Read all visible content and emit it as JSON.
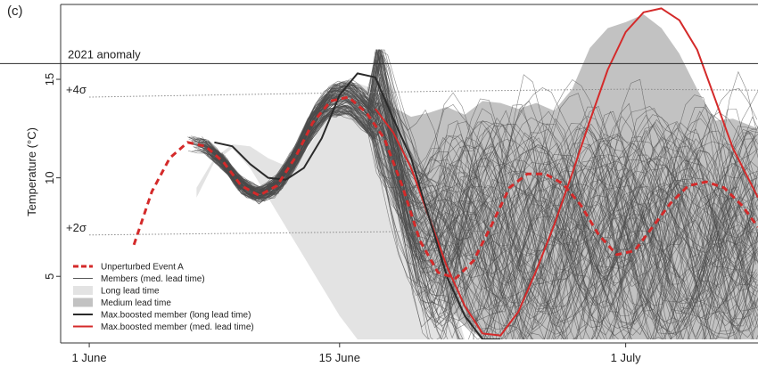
{
  "panel_label": "(c)",
  "chart_data": {
    "type": "line",
    "title": "",
    "xlabel": "",
    "ylabel": "Temperature (°C)",
    "x_tick_labels": [
      "1 June",
      "15 June",
      "1 July"
    ],
    "x_tick_days": [
      0,
      14,
      30
    ],
    "y_ticks": [
      5,
      10,
      15
    ],
    "xlim_days": [
      -1.6,
      37.4
    ],
    "ylim": [
      1.8,
      18.8
    ],
    "grid": false,
    "legend_position": "bottom-left",
    "reference_lines": [
      {
        "label": "2021 anomaly",
        "y": 15.8,
        "style": "solid"
      },
      {
        "label": "+4σ",
        "style": "dotted",
        "days": [
          0,
          10,
          20,
          30,
          37.4
        ],
        "y": [
          14.1,
          14.25,
          14.4,
          14.5,
          14.45
        ]
      },
      {
        "label": "+2σ",
        "style": "dotted",
        "days": [
          0,
          10,
          20,
          30,
          37.4
        ],
        "y": [
          7.1,
          7.2,
          7.3,
          7.35,
          7.35
        ]
      }
    ],
    "bands": [
      {
        "name": "Long lead time",
        "color": "#e3e3e3",
        "days": [
          6,
          7,
          8,
          9,
          10,
          11,
          12,
          13,
          14,
          15,
          16,
          17,
          18,
          19,
          20,
          21
        ],
        "upper": [
          9.5,
          11,
          11.7,
          11.6,
          11.0,
          10.6,
          11.2,
          12.6,
          14.1,
          14.8,
          14.5,
          13.8,
          11.5,
          8.5,
          5.0,
          1.8
        ],
        "lower": [
          9.0,
          10.8,
          11.5,
          10.5,
          9.0,
          7.5,
          6.0,
          4.5,
          3.0,
          1.8,
          1.8,
          1.8,
          1.8,
          1.8,
          1.8,
          1.8
        ]
      },
      {
        "name": "Medium lead time",
        "color": "#c2c2c2",
        "days": [
          16,
          17,
          18,
          19,
          20,
          21,
          22,
          23,
          24,
          25,
          26,
          27,
          28,
          29,
          30,
          31,
          32,
          33,
          34,
          35,
          36,
          37.4
        ],
        "upper": [
          13.8,
          13.6,
          13.1,
          13.3,
          13.6,
          13.2,
          13.9,
          13.8,
          13.5,
          13.8,
          13.4,
          14.5,
          16.6,
          17.6,
          17.9,
          18.3,
          17.6,
          16.3,
          14.5,
          12.9,
          13.0,
          12.5
        ],
        "lower": [
          11.0,
          9.0,
          7.0,
          5.0,
          3.5,
          2.5,
          1.8,
          1.8,
          1.8,
          1.8,
          1.8,
          1.8,
          1.8,
          1.8,
          1.8,
          1.8,
          1.8,
          1.8,
          1.8,
          1.8,
          1.8,
          1.8
        ]
      }
    ],
    "series": [
      {
        "name": "Unperturbed Event A",
        "color": "#d42a2a",
        "style": "dashed",
        "days": [
          2.5,
          3.5,
          4.5,
          5.5,
          6.5,
          7.5,
          8.5,
          9.5,
          10.5,
          11.5,
          12.5,
          13.5,
          14.5,
          15.5,
          16.5,
          17.5,
          18.5,
          19.5,
          20.5,
          21.5,
          22.5,
          23.5,
          24.5,
          25.5,
          26.5,
          27.5,
          28.5,
          29.5,
          30.5,
          31.5,
          32.5,
          33.5,
          34.5,
          35.5,
          36.5,
          37.4
        ],
        "values": [
          6.6,
          9.3,
          11.0,
          11.8,
          11.6,
          10.8,
          9.6,
          9.1,
          9.6,
          11.0,
          12.8,
          13.9,
          14.1,
          13.3,
          12.0,
          9.6,
          6.8,
          5.2,
          4.9,
          5.8,
          7.6,
          9.5,
          10.2,
          10.2,
          9.7,
          8.6,
          7.1,
          6.1,
          6.3,
          7.5,
          8.7,
          9.6,
          9.8,
          9.5,
          8.6,
          7.5
        ]
      },
      {
        "name": "Members (med. lead time)",
        "color": "#555555",
        "style": "solid",
        "count": 120
      },
      {
        "name": "Long lead time",
        "color": "#e3e3e3",
        "style": "band"
      },
      {
        "name": "Medium lead time",
        "color": "#c2c2c2",
        "style": "band"
      },
      {
        "name": "Max.boosted member (long lead time)",
        "color": "#2a2a2a",
        "style": "solid",
        "days": [
          7,
          8,
          9,
          10,
          11,
          12,
          13,
          14,
          15,
          16,
          17,
          18,
          19,
          20,
          21,
          22,
          23
        ],
        "values": [
          11.8,
          11.6,
          10.7,
          10.0,
          9.9,
          10.5,
          12.0,
          14.2,
          15.3,
          15.1,
          13.0,
          11.0,
          8.0,
          5.0,
          3.0,
          1.8,
          1.8
        ]
      },
      {
        "name": "Max.boosted member (med. lead time)",
        "color": "#d42a2a",
        "style": "solid",
        "days": [
          16,
          17,
          18,
          19,
          20,
          21,
          22,
          23,
          24,
          25,
          26,
          27,
          28,
          29,
          30,
          31,
          32,
          33,
          34,
          35,
          36,
          37.4
        ],
        "values": [
          13.5,
          12.3,
          10.5,
          8.0,
          5.5,
          3.5,
          2.1,
          2.0,
          3.2,
          5.3,
          7.6,
          10.2,
          12.9,
          15.5,
          17.4,
          18.4,
          18.6,
          18.0,
          16.5,
          14.0,
          11.5,
          9.0
        ]
      }
    ]
  }
}
